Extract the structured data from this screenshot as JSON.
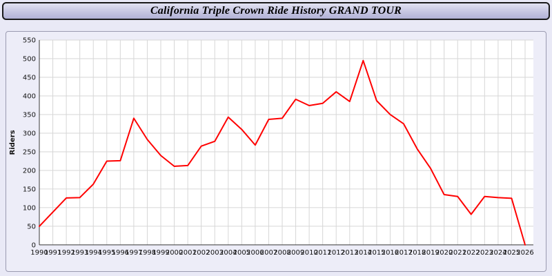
{
  "title": "California Triple Crown Ride History GRAND TOUR",
  "chart_data": {
    "type": "line",
    "title": "California Triple Crown Ride History GRAND TOUR",
    "x": [
      1990,
      1991,
      1992,
      1993,
      1994,
      1995,
      1996,
      1997,
      1998,
      1999,
      2000,
      2001,
      2002,
      2003,
      2004,
      2005,
      2006,
      2007,
      2008,
      2009,
      2010,
      2011,
      2012,
      2013,
      2014,
      2015,
      2016,
      2017,
      2018,
      2019,
      2020,
      2021,
      2022,
      2023,
      2024,
      2025,
      2026
    ],
    "series": [
      {
        "name": "Riders",
        "color": "#ff0000",
        "values": [
          50,
          88,
          126,
          127,
          163,
          225,
          226,
          340,
          283,
          240,
          211,
          213,
          265,
          278,
          343,
          310,
          268,
          337,
          340,
          391,
          374,
          380,
          411,
          385,
          495,
          387,
          350,
          325,
          258,
          205,
          135,
          130,
          82,
          130,
          127,
          125,
          0
        ]
      }
    ],
    "xlabel": "",
    "ylabel": "Riders",
    "ylim": [
      0,
      550
    ],
    "ytick_step": 50,
    "grid": true,
    "legend_position": "none"
  },
  "colors": {
    "line": "#ff0000",
    "page_background": "#e9e9f6",
    "panel_background": "#ededf8",
    "plot_background": "#ffffff",
    "titlebar_background": "#c6c6e2",
    "grid": "#d6d6d6"
  }
}
